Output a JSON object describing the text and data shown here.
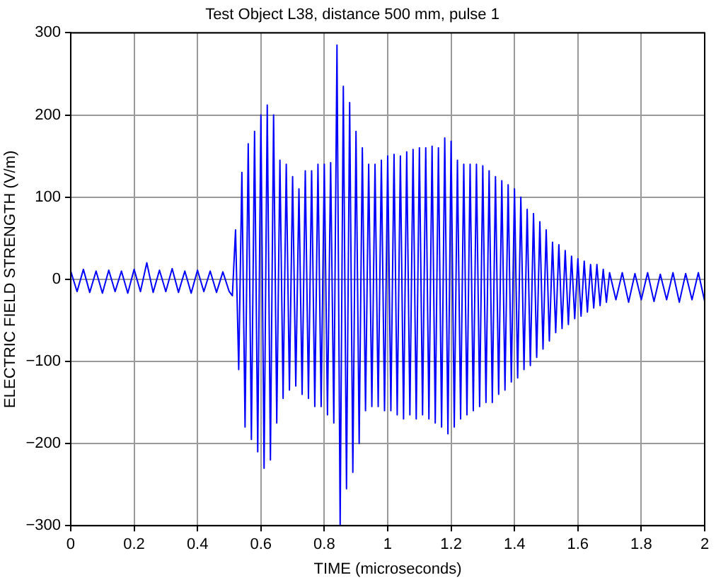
{
  "chart_data": {
    "type": "line",
    "title": "Test Object L38, distance 500 mm, pulse 1",
    "xlabel": "TIME (microseconds)",
    "ylabel": "ELECTRIC FIELD STRENGTH (V/m)",
    "xlim": [
      0,
      2
    ],
    "ylim": [
      -300,
      300
    ],
    "xticks": [
      0,
      0.2,
      0.4,
      0.6,
      0.8,
      1,
      1.2,
      1.4,
      1.6,
      1.8,
      2
    ],
    "yticks": [
      {
        "value": -300,
        "label": "−300"
      },
      {
        "value": -200,
        "label": "−200"
      },
      {
        "value": -100,
        "label": "−100"
      },
      0,
      100,
      200,
      300
    ],
    "grid": true,
    "legend": false,
    "marker": "none",
    "line_style": "solid",
    "series": [
      {
        "color": "#0000ff",
        "x": [
          0,
          0.02,
          0.04,
          0.06,
          0.08,
          0.1,
          0.12,
          0.14,
          0.16,
          0.18,
          0.2,
          0.22,
          0.24,
          0.26,
          0.28,
          0.3,
          0.32,
          0.34,
          0.36,
          0.38,
          0.4,
          0.42,
          0.44,
          0.46,
          0.48,
          0.5,
          0.51,
          0.52,
          0.53,
          0.54,
          0.55,
          0.56,
          0.57,
          0.58,
          0.59,
          0.6,
          0.61,
          0.62,
          0.63,
          0.64,
          0.65,
          0.66,
          0.67,
          0.68,
          0.69,
          0.7,
          0.71,
          0.72,
          0.73,
          0.74,
          0.75,
          0.76,
          0.77,
          0.78,
          0.79,
          0.8,
          0.81,
          0.82,
          0.83,
          0.84,
          0.85,
          0.86,
          0.87,
          0.88,
          0.89,
          0.9,
          0.91,
          0.92,
          0.93,
          0.94,
          0.95,
          0.96,
          0.97,
          0.98,
          0.99,
          1,
          1.01,
          1.02,
          1.03,
          1.04,
          1.05,
          1.06,
          1.07,
          1.08,
          1.09,
          1.1,
          1.11,
          1.12,
          1.13,
          1.14,
          1.15,
          1.16,
          1.17,
          1.18,
          1.19,
          1.2,
          1.21,
          1.22,
          1.23,
          1.24,
          1.25,
          1.26,
          1.27,
          1.28,
          1.29,
          1.3,
          1.31,
          1.32,
          1.33,
          1.34,
          1.35,
          1.36,
          1.37,
          1.38,
          1.39,
          1.4,
          1.41,
          1.42,
          1.43,
          1.44,
          1.45,
          1.46,
          1.47,
          1.48,
          1.49,
          1.5,
          1.51,
          1.52,
          1.53,
          1.54,
          1.55,
          1.56,
          1.57,
          1.58,
          1.59,
          1.6,
          1.61,
          1.62,
          1.63,
          1.64,
          1.65,
          1.66,
          1.67,
          1.68,
          1.69,
          1.7,
          1.72,
          1.74,
          1.76,
          1.78,
          1.8,
          1.82,
          1.84,
          1.86,
          1.88,
          1.9,
          1.92,
          1.94,
          1.96,
          1.98,
          2
        ],
        "values": [
          10,
          -15,
          12,
          -16,
          10,
          -17,
          11,
          -15,
          10,
          -17,
          12,
          -15,
          20,
          -16,
          11,
          -15,
          13,
          -16,
          10,
          -17,
          11,
          -15,
          10,
          -16,
          9,
          -15,
          -20,
          60,
          -110,
          130,
          -180,
          165,
          -195,
          180,
          -210,
          200,
          -230,
          212,
          -220,
          200,
          -175,
          145,
          -145,
          140,
          -135,
          125,
          -130,
          110,
          -140,
          132,
          -145,
          132,
          -155,
          140,
          -155,
          140,
          -165,
          142,
          -175,
          285,
          -300,
          235,
          -255,
          215,
          -235,
          180,
          -200,
          160,
          -160,
          140,
          -155,
          140,
          -155,
          145,
          -160,
          150,
          -160,
          152,
          -165,
          150,
          -170,
          155,
          -165,
          158,
          -170,
          160,
          -165,
          160,
          -170,
          162,
          -175,
          160,
          -180,
          172,
          -188,
          168,
          -180,
          145,
          -170,
          140,
          -165,
          140,
          -160,
          140,
          -155,
          138,
          -150,
          132,
          -150,
          125,
          -140,
          120,
          -135,
          115,
          -125,
          110,
          -120,
          100,
          -110,
          85,
          -105,
          80,
          -95,
          70,
          -85,
          60,
          -75,
          45,
          -65,
          42,
          -60,
          35,
          -55,
          28,
          -48,
          25,
          -45,
          22,
          -40,
          18,
          -35,
          18,
          -32,
          12,
          -28,
          8,
          -25,
          8,
          -28,
          7,
          -25,
          8,
          -27,
          6,
          -25,
          8,
          -28,
          7,
          -25,
          8,
          -27
        ]
      }
    ]
  }
}
